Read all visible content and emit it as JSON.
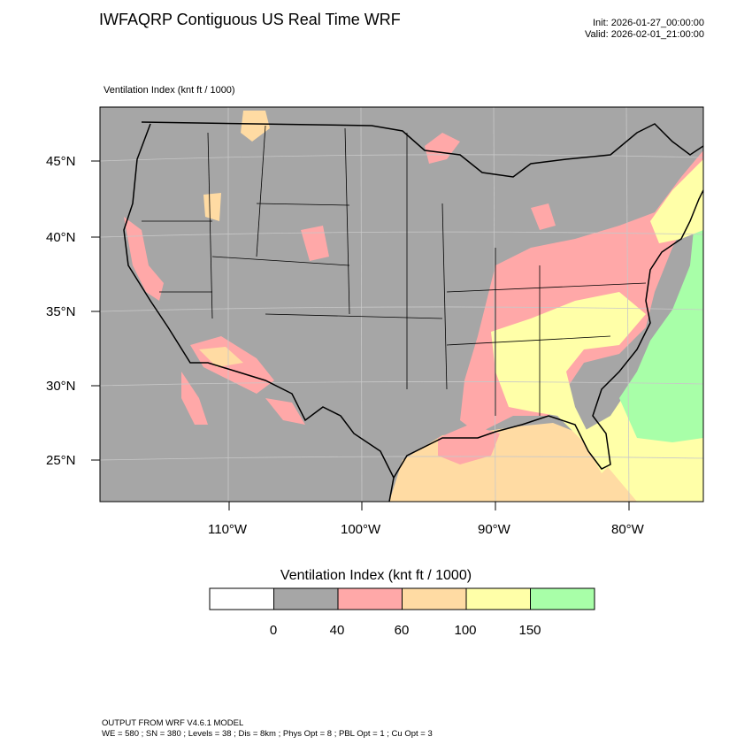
{
  "header": {
    "title": "IWFAQRP Contiguous US Real Time WRF",
    "init": "Init: 2026-01-27_00:00:00",
    "valid": "Valid: 2026-02-01_21:00:00"
  },
  "map": {
    "field_label": "Ventilation Index   (knt ft / 1000)",
    "lat_labels": [
      "45°N",
      "40°N",
      "35°N",
      "30°N",
      "25°N"
    ],
    "lon_labels": [
      "110°W",
      "100°W",
      "90°W",
      "80°W"
    ]
  },
  "colorbar": {
    "title": "Ventilation Index  (knt ft / 1000)",
    "bins": [
      {
        "color": "#ffffff"
      },
      {
        "color": "#a6a6a6"
      },
      {
        "color": "#ffa8a8"
      },
      {
        "color": "#ffdba3"
      },
      {
        "color": "#ffffa8"
      },
      {
        "color": "#a8ffa8"
      }
    ],
    "tick_labels": [
      "0",
      "40",
      "60",
      "100",
      "150"
    ]
  },
  "footer": {
    "line1": "OUTPUT FROM WRF V4.6.1 MODEL",
    "line2": "WE = 580 ; SN = 380 ; Levels = 38 ; Dis = 8km ; Phys Opt = 8 ; PBL Opt = 1 ; Cu Opt = 3"
  }
}
